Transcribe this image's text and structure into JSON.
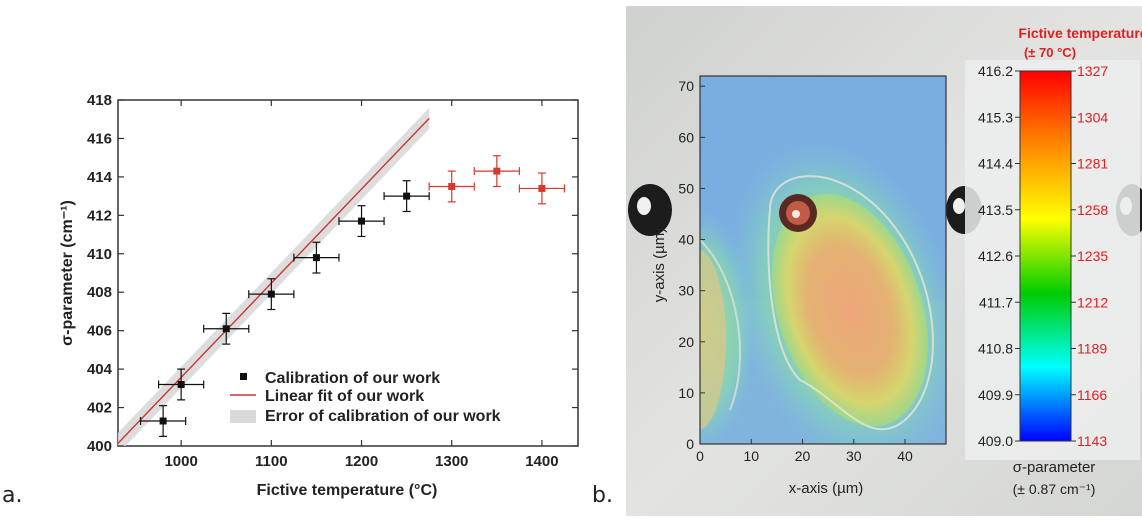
{
  "panel_labels": [
    "a.",
    "b."
  ],
  "chart_data": [
    {
      "type": "scatter",
      "panel": "a.",
      "xlabel": "Fictive temperature (°C)",
      "ylabel": "σ-parameter (cm⁻¹)",
      "xlim": [
        930,
        1440
      ],
      "ylim": [
        400,
        418
      ],
      "x_ticks": [
        1000,
        1100,
        1200,
        1300,
        1400
      ],
      "y_ticks": [
        400,
        402,
        404,
        406,
        408,
        410,
        412,
        414,
        416,
        418
      ],
      "legend_position": "bottom-right",
      "series": [
        {
          "name": "Calibration of our work",
          "color": "#111111",
          "points": [
            {
              "x": 980,
              "y": 401.3,
              "xerr": 25,
              "yerr": 0.8
            },
            {
              "x": 1000,
              "y": 403.2,
              "xerr": 25,
              "yerr": 0.8
            },
            {
              "x": 1050,
              "y": 406.1,
              "xerr": 25,
              "yerr": 0.8
            },
            {
              "x": 1100,
              "y": 407.9,
              "xerr": 25,
              "yerr": 0.8
            },
            {
              "x": 1150,
              "y": 409.8,
              "xerr": 25,
              "yerr": 0.8
            },
            {
              "x": 1200,
              "y": 411.7,
              "xerr": 25,
              "yerr": 0.8
            },
            {
              "x": 1250,
              "y": 413.0,
              "xerr": 25,
              "yerr": 0.8
            }
          ]
        },
        {
          "name": "",
          "color": "#d43a2a",
          "points": [
            {
              "x": 1300,
              "y": 413.5,
              "xerr": 25,
              "yerr": 0.8
            },
            {
              "x": 1350,
              "y": 414.3,
              "xerr": 25,
              "yerr": 0.8
            },
            {
              "x": 1400,
              "y": 413.4,
              "xerr": 25,
              "yerr": 0.8
            }
          ]
        }
      ],
      "fit": {
        "name": "Linear fit of our work",
        "color": "#cc3333",
        "x_range": [
          930,
          1275
        ],
        "slope": 0.049,
        "intercept": 354.57,
        "error_name": "Error of calibration of our work",
        "error_color": "#d9d9d9",
        "error_band": 0.55
      }
    },
    {
      "type": "heatmap",
      "panel": "b.",
      "xlabel": "x-axis (µm)",
      "ylabel": "y-axis (µm)",
      "xlim": [
        0,
        48
      ],
      "ylim": [
        0,
        72
      ],
      "x_ticks": [
        0,
        10,
        20,
        30,
        40
      ],
      "y_ticks": [
        0,
        10,
        20,
        30,
        40,
        50,
        60,
        70
      ],
      "colorbar": {
        "title": "Fictive temperature",
        "title_error": "(± 70 °C)",
        "title_color": "#e02020",
        "left_labels": [
          "416.2",
          "415.3",
          "414.4",
          "413.5",
          "412.6",
          "411.7",
          "410.8",
          "409.9",
          "409.0"
        ],
        "right_labels": [
          "1327",
          "1304",
          "1281",
          "1258",
          "1235",
          "1212",
          "1189",
          "1166",
          "1143"
        ],
        "right_color": "#e02020",
        "bottom_label": "σ-parameter",
        "bottom_error": "(± 0.87 cm⁻¹)",
        "colors": [
          "#ff0000",
          "#ff8800",
          "#ffff00",
          "#00cc00",
          "#00ffff",
          "#0000ff"
        ]
      }
    }
  ]
}
